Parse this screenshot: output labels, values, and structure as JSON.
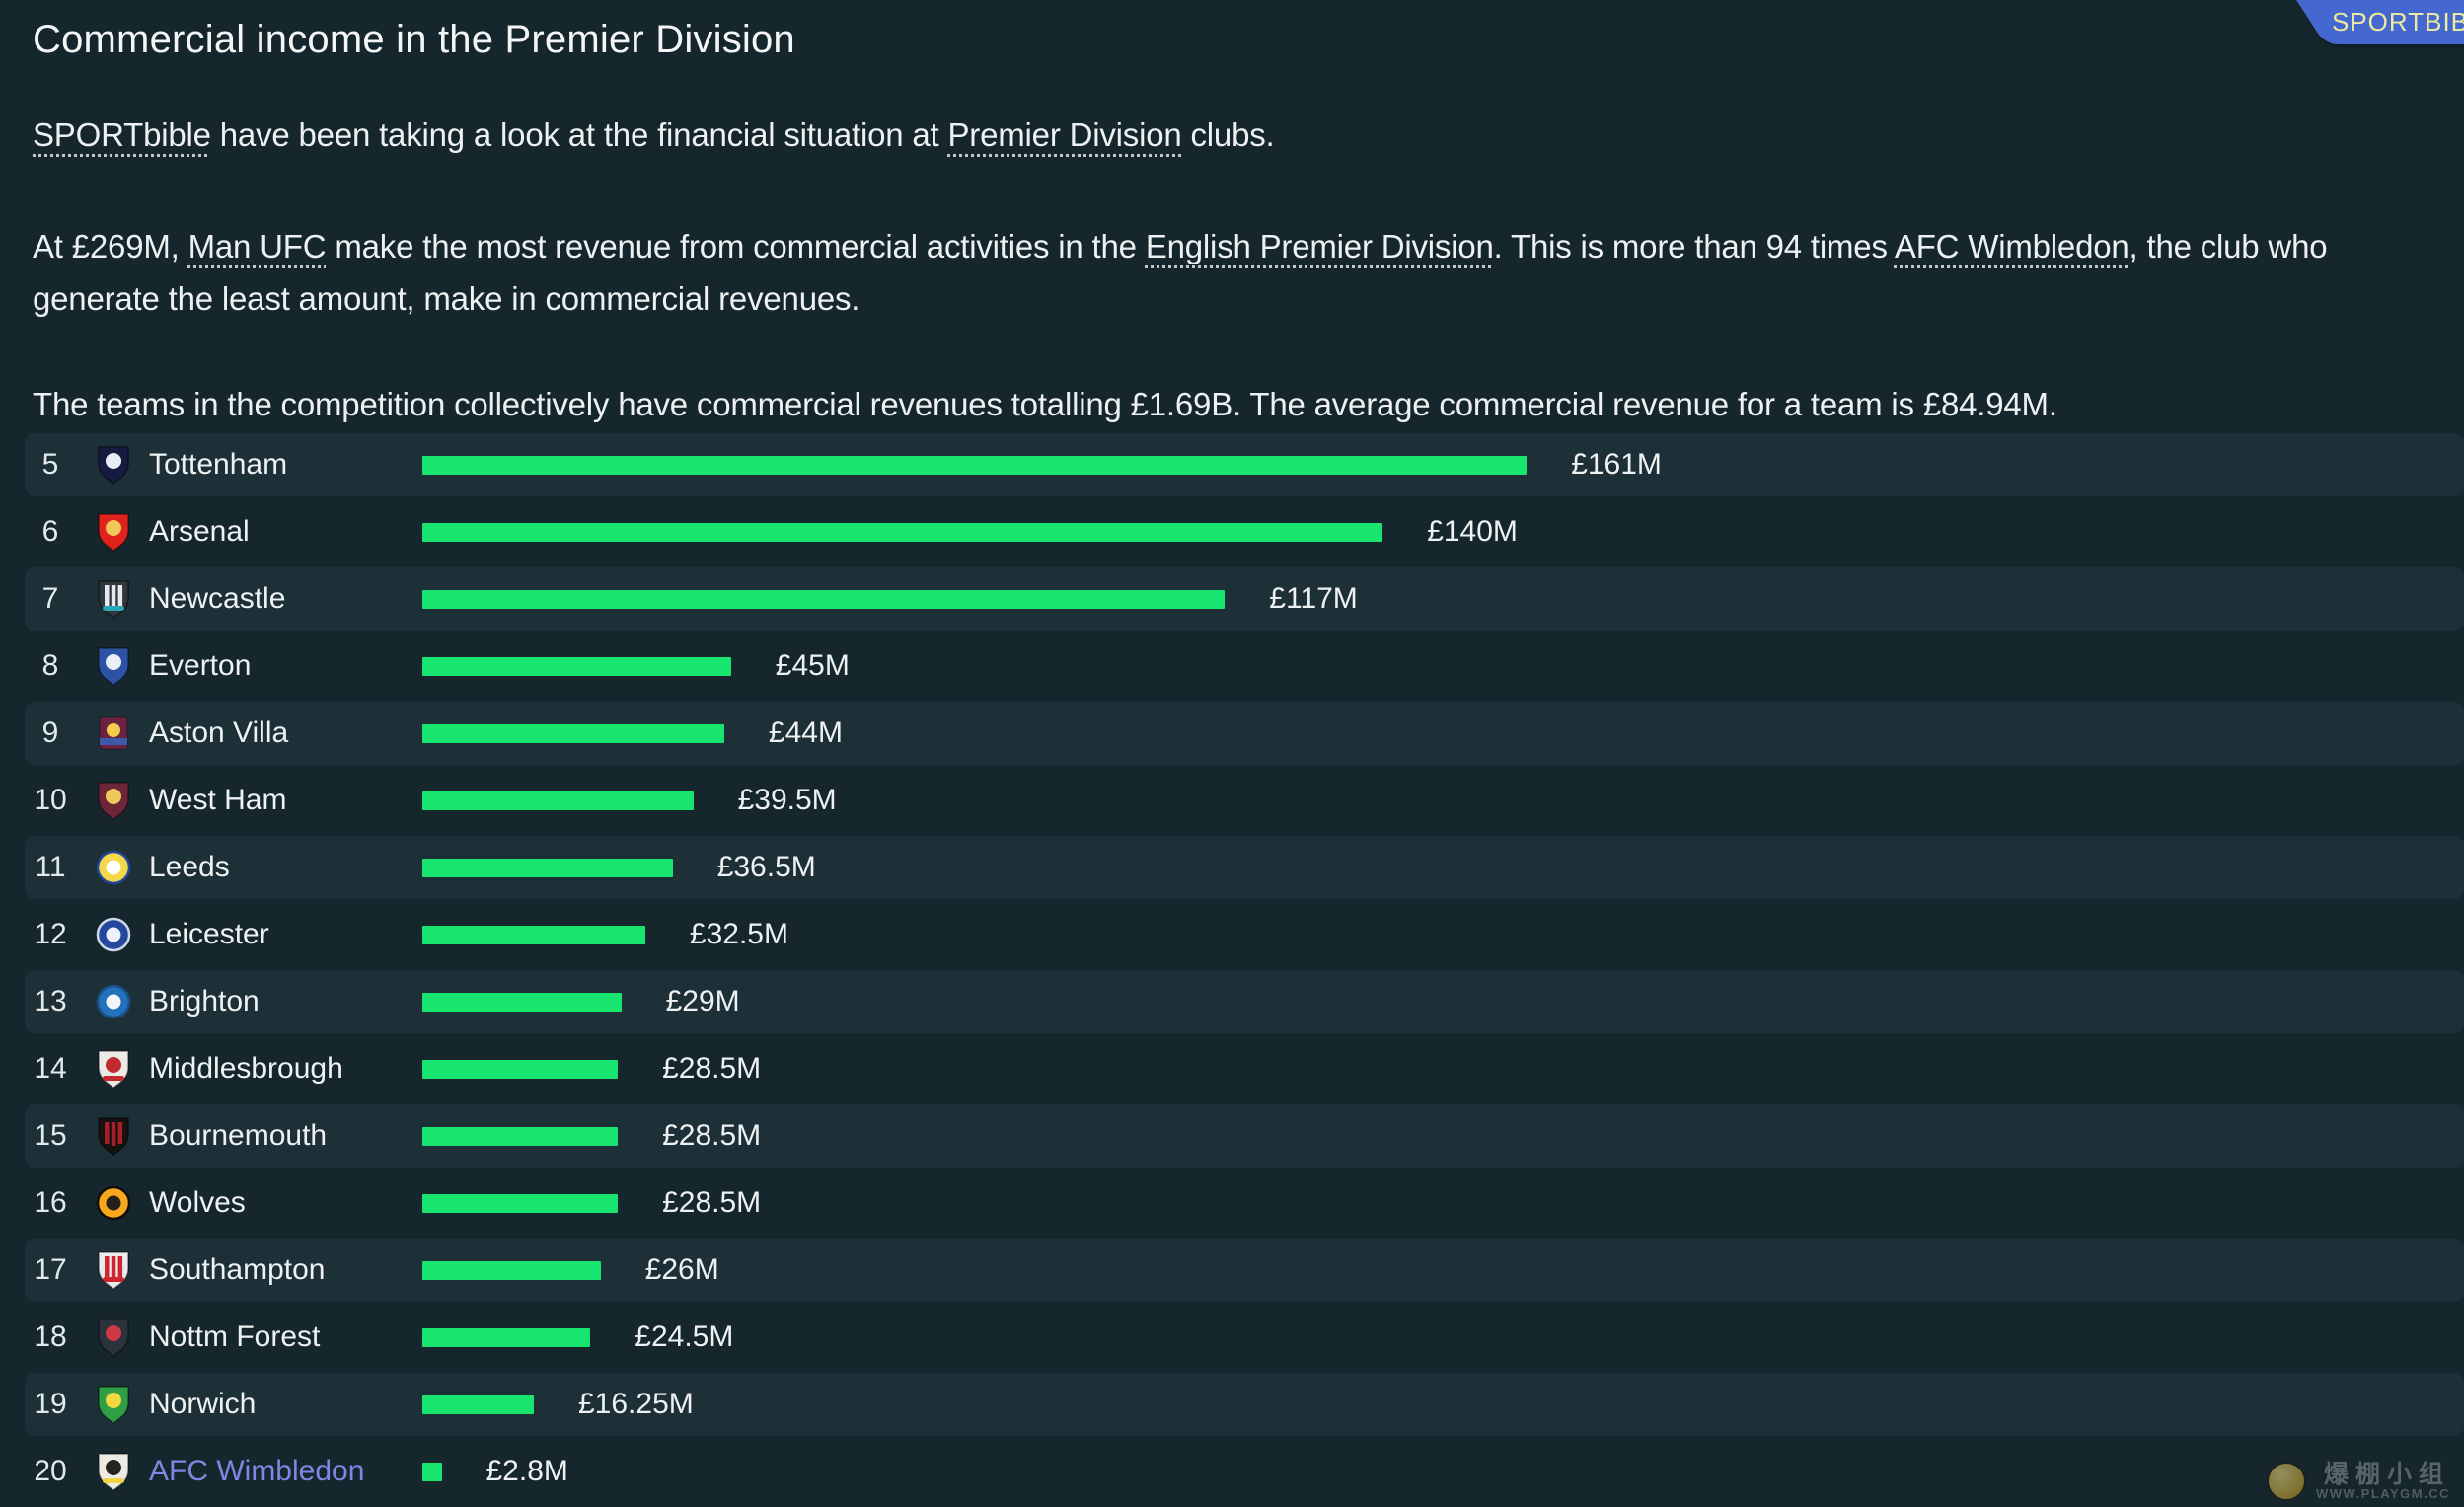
{
  "header": {
    "title": "Commercial income in the Premier Division",
    "brand_badge": {
      "label": "SPORTBIBLE",
      "bg_color": "#4468cf",
      "text_color": "#ece9a0"
    }
  },
  "intro": {
    "paragraphs": [
      {
        "segments": [
          {
            "text": "SPORTbible",
            "link": true
          },
          {
            "text": " have been taking a look at the financial situation at "
          },
          {
            "text": "Premier Division",
            "link": true
          },
          {
            "text": " clubs."
          }
        ]
      },
      {
        "segments": [
          {
            "text": "At £269M, "
          },
          {
            "text": "Man UFC",
            "link": true
          },
          {
            "text": " make the most revenue from commercial activities in the "
          },
          {
            "text": "English Premier Division",
            "link": true
          },
          {
            "text": ". This is more than 94 times "
          },
          {
            "text": "AFC Wimbledon",
            "link": true
          },
          {
            "text": ", the club who generate the least amount, make in commercial revenues."
          }
        ]
      },
      {
        "segments": [
          {
            "text": "The teams in the competition collectively have commercial revenues totalling £1.69B. The average commercial revenue for a team is £84.94M."
          }
        ]
      }
    ]
  },
  "chart_data": {
    "type": "bar",
    "orientation": "horizontal",
    "title": "Commercial income in the Premier Division",
    "unit": "£M",
    "value_axis_max": 269,
    "bar_color": "#17e56e",
    "rows": [
      {
        "rank": 5,
        "team": "Tottenham",
        "value": 161,
        "label": "£161M",
        "badge": {
          "shape": "shield",
          "bg": "#161c3f",
          "emblem": "#e9edf5"
        }
      },
      {
        "rank": 6,
        "team": "Arsenal",
        "value": 140,
        "label": "£140M",
        "badge": {
          "shape": "shield",
          "bg": "#df231c",
          "emblem": "#f2c75a"
        }
      },
      {
        "rank": 7,
        "team": "Newcastle",
        "value": 117,
        "label": "£117M",
        "badge": {
          "shape": "shield",
          "bg": "#30363b",
          "stripes": "#e6eaec",
          "accent": "#2aa6b6"
        }
      },
      {
        "rank": 8,
        "team": "Everton",
        "value": 45,
        "label": "£45M",
        "badge": {
          "shape": "shield",
          "bg": "#2d54a4",
          "emblem": "#e9eef7"
        }
      },
      {
        "rank": 9,
        "team": "Aston Villa",
        "value": 44,
        "label": "£44M",
        "badge": {
          "shape": "square",
          "bg": "#6b2141",
          "emblem": "#f0cd4a",
          "accent": "#3b58a9"
        }
      },
      {
        "rank": 10,
        "team": "West Ham",
        "value": 39.5,
        "label": "£39.5M",
        "badge": {
          "shape": "shield",
          "bg": "#6f2538",
          "emblem": "#f0c85c"
        }
      },
      {
        "rank": 11,
        "team": "Leeds",
        "value": 36.5,
        "label": "£36.5M",
        "badge": {
          "shape": "circle",
          "bg": "#f3d84b",
          "emblem": "#ffffff",
          "ring": "#20459a"
        }
      },
      {
        "rank": 12,
        "team": "Leicester",
        "value": 32.5,
        "label": "£32.5M",
        "badge": {
          "shape": "circle",
          "bg": "#24489d",
          "emblem": "#eef2fa",
          "ring": "#cfd8e8"
        }
      },
      {
        "rank": 13,
        "team": "Brighton",
        "value": 29,
        "label": "£29M",
        "badge": {
          "shape": "circle",
          "bg": "#2371bd",
          "emblem": "#f2f5f8",
          "ring": "#1c4f86"
        }
      },
      {
        "rank": 14,
        "team": "Middlesbrough",
        "value": 28.5,
        "label": "£28.5M",
        "badge": {
          "shape": "shield",
          "bg": "#eceae4",
          "emblem": "#c32a30",
          "accent": "#c32a30"
        }
      },
      {
        "rank": 15,
        "team": "Bournemouth",
        "value": 28.5,
        "label": "£28.5M",
        "badge": {
          "shape": "shield",
          "bg": "#161212",
          "stripes": "#a81f28"
        }
      },
      {
        "rank": 16,
        "team": "Wolves",
        "value": 28.5,
        "label": "£28.5M",
        "badge": {
          "shape": "circle",
          "bg": "#f6a71d",
          "emblem": "#251f17",
          "ring": "#110e0a"
        }
      },
      {
        "rank": 17,
        "team": "Southampton",
        "value": 26,
        "label": "£26M",
        "badge": {
          "shape": "shield",
          "bg": "#e9ebec",
          "stripes": "#d0242e",
          "accent": "#d0242e"
        }
      },
      {
        "rank": 18,
        "team": "Nottm Forest",
        "value": 24.5,
        "label": "£24.5M",
        "badge": {
          "shape": "shield",
          "bg": "#2a333b",
          "emblem": "#d03843"
        }
      },
      {
        "rank": 19,
        "team": "Norwich",
        "value": 16.25,
        "label": "£16.25M",
        "badge": {
          "shape": "shield",
          "bg": "#2f9e44",
          "emblem": "#f2d93f"
        }
      },
      {
        "rank": 20,
        "team": "AFC Wimbledon",
        "value": 2.8,
        "label": "£2.8M",
        "highlight": true,
        "badge": {
          "shape": "shield",
          "bg": "#ebebe3",
          "emblem": "#26241f",
          "accent": "#f2d544"
        }
      }
    ]
  },
  "watermark": {
    "cn_text": "爆棚小组",
    "url_text": "WWW.PLAYGM.CC"
  },
  "colors": {
    "background": "#16262d",
    "row_stripe": "#1d2f37",
    "bar_green": "#17e56e",
    "body_text": "#edf1f1",
    "team_link": "#8285e2"
  }
}
